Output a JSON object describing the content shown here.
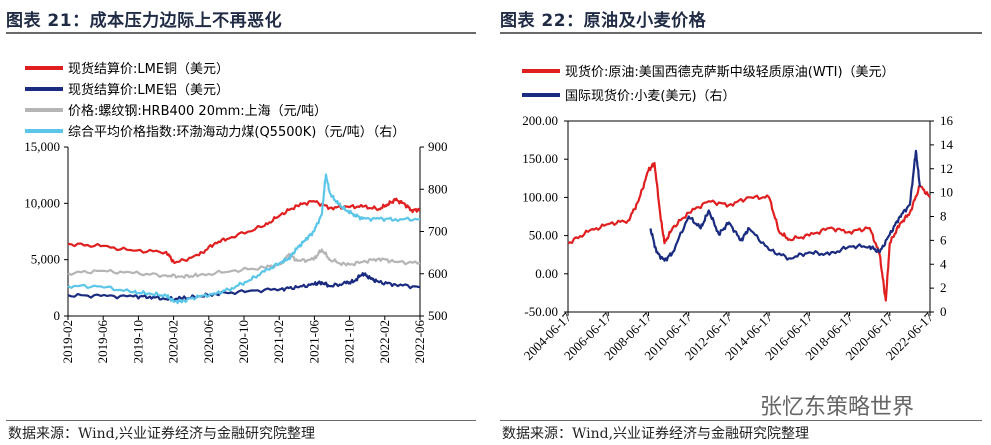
{
  "left_panel": {
    "title": "图表 21：成本压力边际上不再恶化",
    "source": "数据来源：Wind,兴业证券经济与金融研究院整理"
  },
  "right_panel": {
    "title": "图表 22：原油及小麦价格",
    "source": "数据来源：Wind,兴业证券经济与金融研究院整理"
  },
  "watermark": "张忆东策略世界",
  "chart_data": [
    {
      "type": "line",
      "title": "图表 21：成本压力边际上不再恶化",
      "x_tick_labels": [
        "2019-02",
        "2019-06",
        "2019-10",
        "2020-02",
        "2020-06",
        "2020-10",
        "2021-02",
        "2021-06",
        "2021-10",
        "2022-02",
        "2022-06"
      ],
      "y_left": {
        "ticks": [
          "0",
          "5,000",
          "10,000",
          "15,000"
        ],
        "ylim": [
          0,
          15000
        ]
      },
      "y_right": {
        "ticks": [
          "500",
          "600",
          "700",
          "800",
          "900"
        ],
        "ylim": [
          500,
          900
        ]
      },
      "legend_position": "top",
      "series": [
        {
          "name": "现货结算价:LME铜（美元）",
          "axis": "left",
          "color": "#e02020",
          "points": [
            [
              0,
              6400
            ],
            [
              4,
              6200
            ],
            [
              8,
              5800
            ],
            [
              12,
              5700
            ],
            [
              13,
              4700
            ],
            [
              16,
              5400
            ],
            [
              18,
              6500
            ],
            [
              20,
              7000
            ],
            [
              24,
              8000
            ],
            [
              26,
              9000
            ],
            [
              28,
              9800
            ],
            [
              30,
              10200
            ],
            [
              32,
              9600
            ],
            [
              34,
              9700
            ],
            [
              36,
              9700
            ],
            [
              38,
              9500
            ],
            [
              39,
              9900
            ],
            [
              40,
              10300
            ],
            [
              41,
              10000
            ],
            [
              42,
              9400
            ],
            [
              43,
              9400
            ]
          ]
        },
        {
          "name": "现货结算价:LME铝（美元）",
          "axis": "left",
          "color": "#1a2b80",
          "points": [
            [
              0,
              1850
            ],
            [
              4,
              1780
            ],
            [
              8,
              1730
            ],
            [
              10,
              1720
            ],
            [
              12,
              1500
            ],
            [
              14,
              1550
            ],
            [
              16,
              1750
            ],
            [
              18,
              1950
            ],
            [
              22,
              2200
            ],
            [
              26,
              2400
            ],
            [
              28,
              2550
            ],
            [
              30,
              2800
            ],
            [
              31,
              3000
            ],
            [
              32,
              2650
            ],
            [
              34,
              2900
            ],
            [
              35,
              3100
            ],
            [
              36,
              3800
            ],
            [
              37,
              3300
            ],
            [
              38,
              3000
            ],
            [
              40,
              2800
            ],
            [
              43,
              2550
            ]
          ]
        },
        {
          "name": "价格:螺纹钢:HRB400 20mm:上海（元/吨）",
          "axis": "left",
          "color": "#b5b5b5",
          "points": [
            [
              0,
              3800
            ],
            [
              4,
              4000
            ],
            [
              8,
              3800
            ],
            [
              12,
              3600
            ],
            [
              14,
              3500
            ],
            [
              16,
              3600
            ],
            [
              20,
              4000
            ],
            [
              24,
              4300
            ],
            [
              26,
              4600
            ],
            [
              27,
              5500
            ],
            [
              28,
              4900
            ],
            [
              30,
              5000
            ],
            [
              31,
              5900
            ],
            [
              32,
              5000
            ],
            [
              34,
              4500
            ],
            [
              36,
              4800
            ],
            [
              38,
              5100
            ],
            [
              40,
              4800
            ],
            [
              43,
              4700
            ]
          ]
        },
        {
          "name": "综合平均价格指数:环渤海动力煤(Q5500K)（元/吨）（右）",
          "axis": "right",
          "color": "#5cc6e8",
          "points": [
            [
              0,
              571
            ],
            [
              4,
              570
            ],
            [
              8,
              556
            ],
            [
              10,
              553
            ],
            [
              12,
              548
            ],
            [
              13,
              534
            ],
            [
              14,
              536
            ],
            [
              16,
              546
            ],
            [
              18,
              552
            ],
            [
              20,
              566
            ],
            [
              22,
              583
            ],
            [
              24,
              605
            ],
            [
              26,
              627
            ],
            [
              27,
              637
            ],
            [
              28,
              660
            ],
            [
              29,
              680
            ],
            [
              30,
              700
            ],
            [
              31,
              740
            ],
            [
              31.5,
              835
            ],
            [
              32,
              790
            ],
            [
              33,
              765
            ],
            [
              34,
              750
            ],
            [
              35,
              740
            ],
            [
              36,
              730
            ],
            [
              38,
              730
            ],
            [
              40,
              729
            ],
            [
              43,
              729
            ]
          ]
        }
      ]
    },
    {
      "type": "line",
      "title": "图表 22：原油及小麦价格",
      "x_tick_labels": [
        "2004-06-17",
        "2006-06-17",
        "2008-06-17",
        "2010-06-17",
        "2012-06-17",
        "2014-06-17",
        "2016-06-17",
        "2018-06-17",
        "2020-06-17",
        "2022-06-17"
      ],
      "y_left": {
        "ticks": [
          "-50.00",
          "0.00",
          "50.00",
          "100.00",
          "150.00",
          "200.00"
        ],
        "ylim": [
          -50,
          200
        ]
      },
      "y_right": {
        "ticks": [
          "0",
          "2",
          "4",
          "6",
          "8",
          "10",
          "12",
          "14",
          "16"
        ],
        "ylim": [
          0,
          16
        ]
      },
      "legend_position": "top",
      "series": [
        {
          "name": "现货价:原油:美国西德克萨斯中级轻质原油(WTI)（美元）",
          "axis": "left",
          "color": "#e02020",
          "points": [
            [
              0,
              40
            ],
            [
              1,
              55
            ],
            [
              2,
              65
            ],
            [
              3,
              70
            ],
            [
              3.5,
              95
            ],
            [
              4,
              135
            ],
            [
              4.3,
              145
            ],
            [
              4.6,
              75
            ],
            [
              4.8,
              40
            ],
            [
              5.2,
              60
            ],
            [
              6,
              80
            ],
            [
              7,
              95
            ],
            [
              8,
              90
            ],
            [
              9,
              100
            ],
            [
              10,
              100
            ],
            [
              10.5,
              55
            ],
            [
              11,
              45
            ],
            [
              12,
              50
            ],
            [
              13,
              60
            ],
            [
              14,
              55
            ],
            [
              15,
              60
            ],
            [
              15.5,
              25
            ],
            [
              15.8,
              -35
            ],
            [
              16,
              40
            ],
            [
              16.5,
              65
            ],
            [
              17,
              80
            ],
            [
              17.5,
              115
            ],
            [
              18,
              100
            ]
          ]
        },
        {
          "name": "国际现货价:小麦(美元)（右）",
          "axis": "right",
          "color": "#1a2b80",
          "points": [
            [
              4.1,
              7.0
            ],
            [
              4.4,
              5.0
            ],
            [
              4.8,
              4.3
            ],
            [
              5.2,
              5.0
            ],
            [
              6,
              8.0
            ],
            [
              6.6,
              7.0
            ],
            [
              7,
              8.5
            ],
            [
              7.5,
              6.5
            ],
            [
              8,
              7.5
            ],
            [
              8.6,
              6.0
            ],
            [
              9,
              7.0
            ],
            [
              10,
              5.2
            ],
            [
              11,
              4.5
            ],
            [
              12,
              5.0
            ],
            [
              13,
              4.8
            ],
            [
              14,
              5.5
            ],
            [
              15,
              5.5
            ],
            [
              15.5,
              5.0
            ],
            [
              16,
              6.5
            ],
            [
              16.5,
              8.0
            ],
            [
              17,
              9.0
            ],
            [
              17.3,
              13.5
            ],
            [
              17.5,
              10.5
            ]
          ]
        }
      ]
    }
  ]
}
